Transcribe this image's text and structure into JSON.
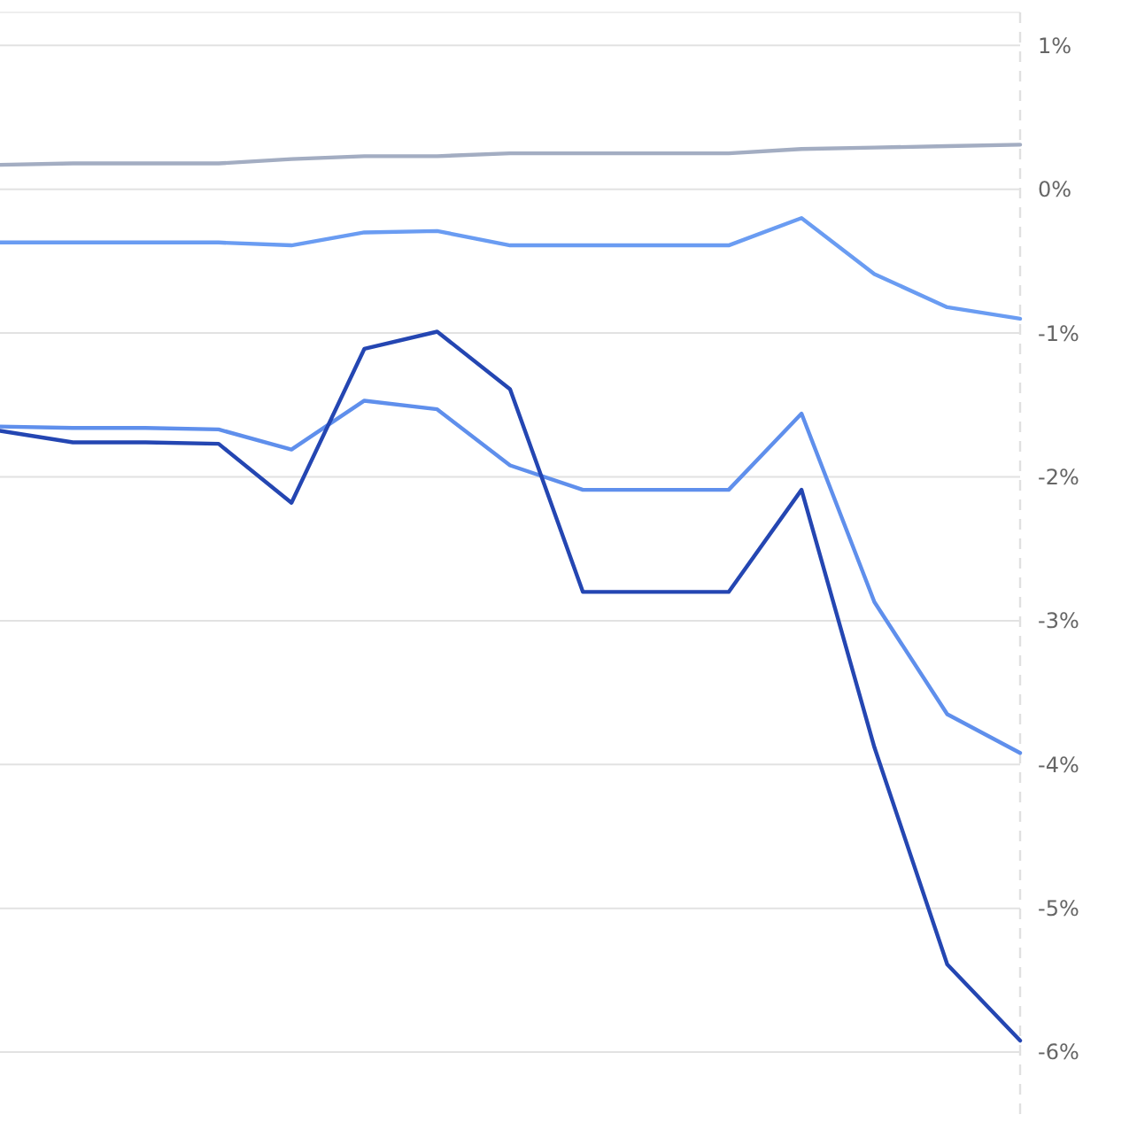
{
  "chart_data": {
    "type": "line",
    "categories": [
      null,
      null,
      null,
      null,
      null,
      null,
      null,
      null,
      null,
      null,
      null,
      null,
      null,
      null,
      null
    ],
    "series": [
      {
        "color": "#a3adc2",
        "values": [
          0.17,
          0.18,
          0.18,
          0.18,
          0.21,
          0.23,
          0.23,
          0.25,
          0.25,
          0.25,
          0.25,
          0.28,
          0.29,
          0.3,
          0.31
        ]
      },
      {
        "color": "#6a9cf2",
        "values": [
          -0.37,
          -0.37,
          -0.37,
          -0.37,
          -0.39,
          -0.3,
          -0.29,
          -0.39,
          -0.39,
          -0.39,
          -0.39,
          -0.2,
          -0.59,
          -0.82,
          -0.9
        ]
      },
      {
        "color": "#5f8fec",
        "values": [
          -1.65,
          -1.66,
          -1.66,
          -1.67,
          -1.81,
          -1.47,
          -1.53,
          -1.92,
          -2.09,
          -2.09,
          -2.09,
          -1.56,
          -2.87,
          -3.65,
          -3.92
        ]
      },
      {
        "color": "#2446b2",
        "values": [
          -1.68,
          -1.76,
          -1.76,
          -1.77,
          -2.18,
          -1.11,
          -0.99,
          -1.39,
          -2.8,
          -2.8,
          -2.8,
          -2.09,
          -3.88,
          -5.39,
          -5.92
        ]
      }
    ],
    "ylim": [
      -6.48,
      1.23
    ],
    "yticks": [
      {
        "value": 1,
        "label": "1%"
      },
      {
        "value": 0,
        "label": "0%"
      },
      {
        "value": -1,
        "label": "-1%"
      },
      {
        "value": -2,
        "label": "-2%"
      },
      {
        "value": -3,
        "label": "-3%"
      },
      {
        "value": -4,
        "label": "-4%"
      },
      {
        "value": -5,
        "label": "-5%"
      },
      {
        "value": -6,
        "label": "-6%"
      }
    ],
    "grid": "y",
    "tick_labels": "y",
    "marker": "none",
    "line_style": "solid"
  }
}
